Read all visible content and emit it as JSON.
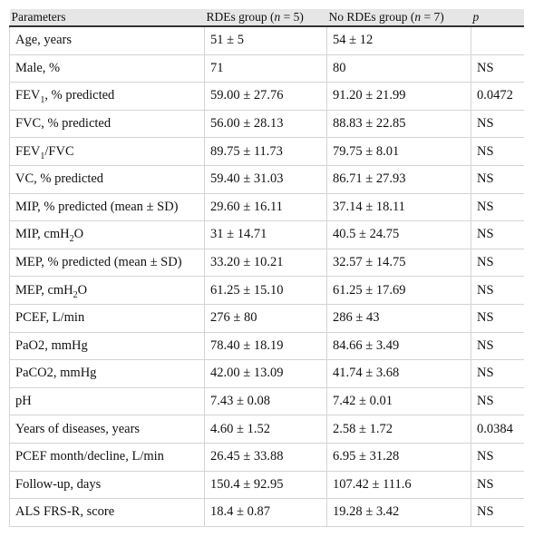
{
  "table": {
    "header": [
      "Parameters",
      [
        "RDEs group (",
        "n",
        " = 5)"
      ],
      [
        "No RDEs group (",
        "n",
        " = 7)"
      ],
      [
        "",
        "p",
        ""
      ]
    ],
    "rows": [
      [
        "Age, years",
        "51 ± 5",
        "54 ± 12",
        ""
      ],
      [
        "Male, %",
        "71",
        "80",
        "NS"
      ],
      [
        [
          "FEV",
          "1",
          ", % predicted"
        ],
        "59.00 ± 27.76",
        "91.20 ± 21.99",
        "0.0472"
      ],
      [
        "FVC, % predicted",
        "56.00 ± 28.13",
        "88.83 ± 22.85",
        "NS"
      ],
      [
        [
          "FEV",
          "1",
          "/FVC"
        ],
        "89.75 ± 11.73",
        "79.75 ± 8.01",
        "NS"
      ],
      [
        "VC, % predicted",
        "59.40 ± 31.03",
        "86.71 ± 27.93",
        "NS"
      ],
      [
        "MIP, % predicted (mean ± SD)",
        "29.60 ± 16.11",
        "37.14 ± 18.11",
        "NS"
      ],
      [
        [
          "MIP, cmH",
          "2",
          "O"
        ],
        "31 ± 14.71",
        "40.5 ± 24.75",
        "NS"
      ],
      [
        "MEP, % predicted (mean ± SD)",
        "33.20 ± 10.21",
        "32.57 ± 14.75",
        "NS"
      ],
      [
        [
          "MEP, cmH",
          "2",
          "O"
        ],
        "61.25 ± 15.10",
        "61.25 ± 17.69",
        "NS"
      ],
      [
        "PCEF, L/min",
        "276 ± 80",
        "286 ± 43",
        "NS"
      ],
      [
        "PaO2, mmHg",
        "78.40 ± 18.19",
        "84.66 ± 3.49",
        "NS"
      ],
      [
        "PaCO2, mmHg",
        "42.00 ± 13.09",
        "41.74 ± 3.68",
        "NS"
      ],
      [
        "pH",
        "7.43 ± 0.08",
        "7.42 ± 0.01",
        "NS"
      ],
      [
        "Years of diseases, years",
        "4.60 ± 1.52",
        "2.58 ± 1.72",
        "0.0384"
      ],
      [
        "PCEF month/decline, L/min",
        "26.45 ± 33.88",
        "6.95 ± 31.28",
        "NS"
      ],
      [
        "Follow-up, days",
        "150.4 ± 92.95",
        "107.42 ± 111.6",
        "NS"
      ],
      [
        "ALS FRS-R, score",
        "18.4 ± 0.87",
        "19.28 ± 3.42",
        "NS"
      ]
    ]
  }
}
